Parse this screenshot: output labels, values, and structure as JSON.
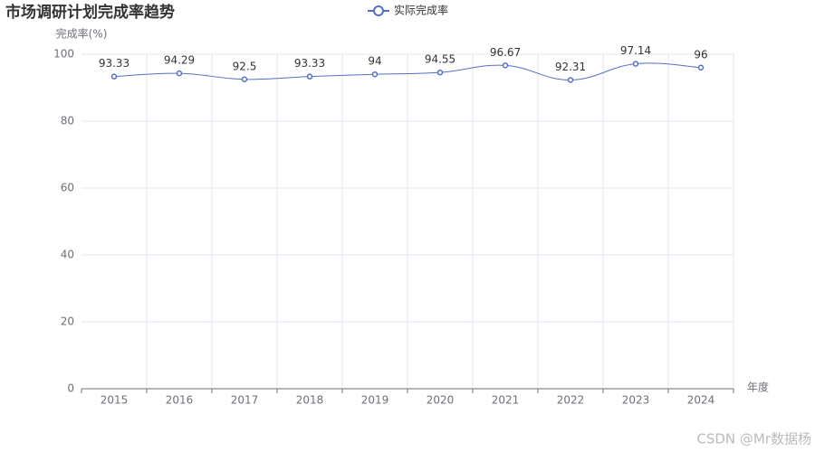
{
  "chart_data": {
    "type": "line",
    "title": "市场调研计划完成率趋势",
    "y_label": "完成率(%)",
    "x_label": "年度",
    "categories": [
      "2015",
      "2016",
      "2017",
      "2018",
      "2019",
      "2020",
      "2021",
      "2022",
      "2023",
      "2024"
    ],
    "series": [
      {
        "name": "实际完成率",
        "color": "#5470c6",
        "values": [
          93.33,
          94.29,
          92.5,
          93.33,
          94,
          94.55,
          96.67,
          92.31,
          97.14,
          96
        ]
      }
    ],
    "ylim": [
      0,
      100
    ],
    "yticks": [
      0,
      20,
      40,
      60,
      80,
      100
    ],
    "grid": true,
    "smooth": true,
    "legend": "top",
    "watermark": "CSDN @Mr数据杨"
  }
}
